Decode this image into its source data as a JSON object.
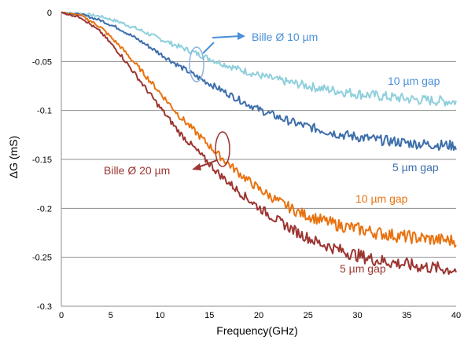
{
  "chart_data": {
    "type": "line",
    "xlabel": "Frequency(GHz)",
    "ylabel": "ΔG (mS)",
    "xlim": [
      0,
      40
    ],
    "ylim": [
      -0.3,
      0
    ],
    "xticks": [
      0,
      5,
      10,
      15,
      20,
      25,
      30,
      35,
      40
    ],
    "yticks": [
      0,
      -0.05,
      -0.1,
      -0.15,
      -0.2,
      -0.25,
      -0.3
    ],
    "grid": "horizontal",
    "series": [
      {
        "color": "#8fcfdc",
        "x": [
          0,
          2,
          4,
          6,
          8,
          10,
          12,
          14,
          16,
          18,
          20,
          22,
          24,
          26,
          28,
          30,
          32,
          34,
          36,
          38,
          40
        ],
        "y": [
          0,
          -0.001,
          -0.004,
          -0.01,
          -0.018,
          -0.027,
          -0.035,
          -0.043,
          -0.051,
          -0.058,
          -0.064,
          -0.069,
          -0.073,
          -0.077,
          -0.08,
          -0.083,
          -0.085,
          -0.087,
          -0.089,
          -0.09,
          -0.091
        ]
      },
      {
        "color": "#3d6eac",
        "x": [
          0,
          2,
          4,
          6,
          8,
          10,
          12,
          14,
          16,
          18,
          20,
          22,
          24,
          26,
          28,
          30,
          32,
          34,
          36,
          38,
          40
        ],
        "y": [
          0,
          -0.002,
          -0.008,
          -0.017,
          -0.029,
          -0.042,
          -0.055,
          -0.067,
          -0.078,
          -0.089,
          -0.099,
          -0.107,
          -0.114,
          -0.119,
          -0.124,
          -0.127,
          -0.13,
          -0.132,
          -0.134,
          -0.135,
          -0.136
        ]
      },
      {
        "color": "#e8720f",
        "x": [
          0,
          2,
          4,
          6,
          8,
          10,
          12,
          14,
          16,
          18,
          20,
          22,
          24,
          26,
          28,
          30,
          32,
          34,
          36,
          38,
          40
        ],
        "y": [
          0,
          -0.003,
          -0.015,
          -0.035,
          -0.058,
          -0.082,
          -0.106,
          -0.126,
          -0.146,
          -0.164,
          -0.18,
          -0.193,
          -0.204,
          -0.211,
          -0.217,
          -0.221,
          -0.225,
          -0.228,
          -0.23,
          -0.232,
          -0.233
        ]
      },
      {
        "color": "#9c3531",
        "x": [
          0,
          2,
          4,
          6,
          8,
          10,
          12,
          14,
          16,
          18,
          20,
          22,
          24,
          26,
          28,
          30,
          32,
          34,
          36,
          38,
          40
        ],
        "y": [
          0,
          -0.005,
          -0.02,
          -0.043,
          -0.07,
          -0.097,
          -0.123,
          -0.144,
          -0.165,
          -0.183,
          -0.199,
          -0.213,
          -0.225,
          -0.235,
          -0.242,
          -0.248,
          -0.253,
          -0.256,
          -0.259,
          -0.261,
          -0.263
        ]
      }
    ],
    "annotations": {
      "bille10": "Bille Ø 10 µm",
      "bille20": "Bille Ø 20 µm",
      "gap_10_blue": "10 µm gap",
      "gap_5_blue": "5 µm gap",
      "gap_10_orange": "10 µm gap",
      "gap_5_red": "5 µm gap"
    },
    "annotation_colors": {
      "bille10": "#4a90d9",
      "bille20": "#9c3531",
      "gap_10_blue": "#4a90d9",
      "gap_5_blue": "#3d6eac",
      "gap_10_orange": "#e8720f",
      "gap_5_red": "#9c3531"
    }
  }
}
